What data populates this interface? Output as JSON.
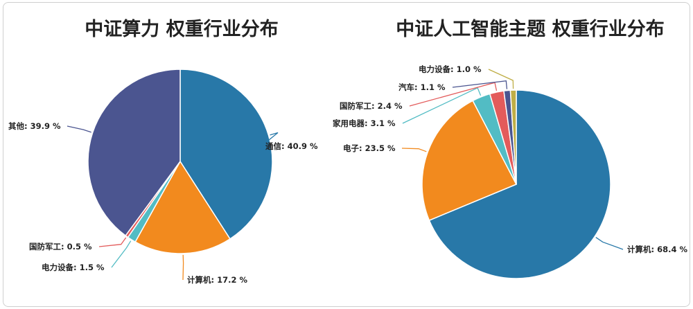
{
  "chart_data": [
    {
      "type": "pie",
      "title": "中证算力 权重行业分布",
      "slices": [
        {
          "label": "通信",
          "value": 40.9,
          "text": "通信: 40.9 %",
          "color": "#2878a8"
        },
        {
          "label": "计算机",
          "value": 17.2,
          "text": "计算机: 17.2 %",
          "color": "#f28a1e"
        },
        {
          "label": "电力设备",
          "value": 1.5,
          "text": "电力设备: 1.5 %",
          "color": "#52bcc4"
        },
        {
          "label": "国防军工",
          "value": 0.5,
          "text": "国防军工: 0.5 %",
          "color": "#e35b5b"
        },
        {
          "label": "其他",
          "value": 39.9,
          "text": "其他: 39.9 %",
          "color": "#4b5590"
        }
      ]
    },
    {
      "type": "pie",
      "title": "中证人工智能主题 权重行业分布",
      "slices": [
        {
          "label": "计算机",
          "value": 68.4,
          "text": "计算机: 68.4 %",
          "color": "#2878a8"
        },
        {
          "label": "电子",
          "value": 23.5,
          "text": "电子: 23.5 %",
          "color": "#f28a1e"
        },
        {
          "label": "家用电器",
          "value": 3.1,
          "text": "家用电器: 3.1 %",
          "color": "#52bcc4"
        },
        {
          "label": "国防军工",
          "value": 2.4,
          "text": "国防军工: 2.4 %",
          "color": "#e35b5b"
        },
        {
          "label": "汽车",
          "value": 1.1,
          "text": "汽车: 1.1 %",
          "color": "#4b5590"
        },
        {
          "label": "电力设备",
          "value": 1.0,
          "text": "电力设备: 1.0 %",
          "color": "#bfae46"
        }
      ]
    }
  ]
}
